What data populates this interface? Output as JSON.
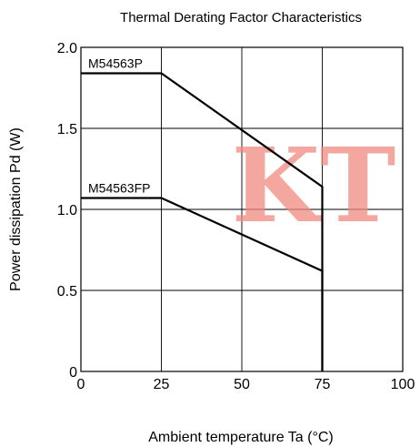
{
  "chart_data": {
    "type": "line",
    "title": "Thermal Derating Factor Characteristics",
    "xlabel": "Ambient temperature  Ta (°C)",
    "ylabel": "Power dissipation  Pd (W)",
    "xlim": [
      0,
      100
    ],
    "ylim": [
      0,
      2.0
    ],
    "x_ticks": [
      0,
      25,
      50,
      75,
      100
    ],
    "y_ticks": [
      0,
      0.5,
      1.0,
      1.5,
      2.0
    ],
    "x_tick_labels": [
      "0",
      "25",
      "50",
      "75",
      "100"
    ],
    "y_tick_labels": [
      "0",
      "0.5",
      "1.0",
      "1.5",
      "2.0"
    ],
    "grid": true,
    "series": [
      {
        "name": "M54563P",
        "points": [
          [
            0,
            1.84
          ],
          [
            25,
            1.84
          ],
          [
            75,
            1.14
          ],
          [
            75,
            0
          ]
        ]
      },
      {
        "name": "M54563FP",
        "points": [
          [
            0,
            1.07
          ],
          [
            25,
            1.07
          ],
          [
            75,
            0.62
          ],
          [
            75,
            0
          ]
        ]
      }
    ]
  },
  "watermark": {
    "text": "KT",
    "color": "#f08a80"
  }
}
